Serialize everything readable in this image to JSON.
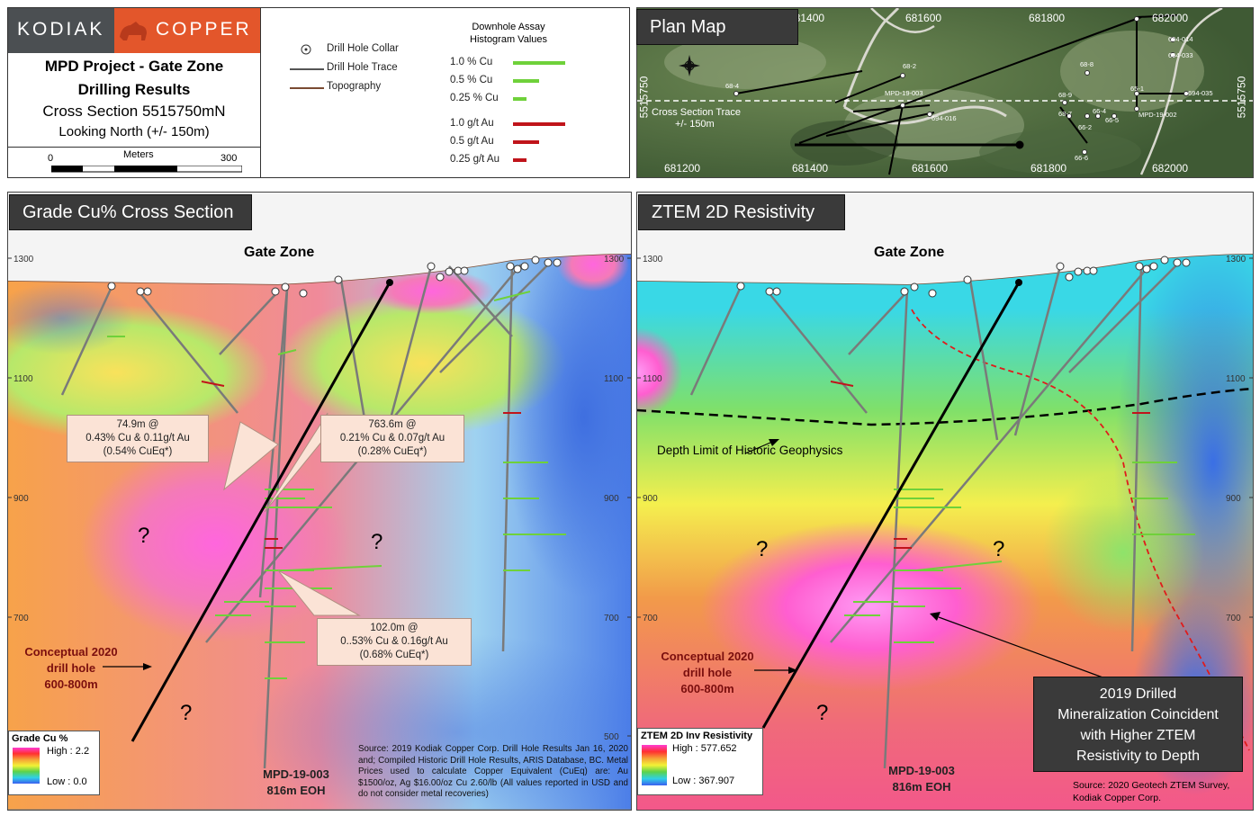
{
  "logo": {
    "left": "KODIAK",
    "right": "COPPER"
  },
  "title_block": {
    "line1": "MPD Project - Gate Zone",
    "line2": "Drilling Results",
    "line3": "Cross Section 5515750mN",
    "line4": "Looking North (+/- 150m)",
    "scale_label": "Meters",
    "scale_min": "0",
    "scale_max": "300"
  },
  "legend": {
    "collar": "Drill Hole Collar",
    "trace": "Drill Hole Trace",
    "topo": "Topography",
    "histogram_title_1": "Downhole Assay",
    "histogram_title_2": "Histogram Values",
    "cu": [
      {
        "label": "1.0 % Cu",
        "value": 1.0
      },
      {
        "label": "0.5 % Cu",
        "value": 0.5
      },
      {
        "label": "0.25 % Cu",
        "value": 0.25
      }
    ],
    "au": [
      {
        "label": "1.0 g/t Au",
        "value": 1.0
      },
      {
        "label": "0.5 g/t Au",
        "value": 0.5
      },
      {
        "label": "0.25 g/t Au",
        "value": 0.25
      }
    ],
    "colors": {
      "cu": "#6fd13a",
      "au": "#c0141b"
    }
  },
  "plan_map": {
    "tag": "Plan Map",
    "top_ticks": [
      "681400",
      "681600",
      "681800",
      "682000"
    ],
    "bottom_ticks": [
      "681200",
      "681400",
      "681600",
      "681800",
      "682000"
    ],
    "northing_left": "5515750",
    "northing_right": "5515750",
    "trace_label_1": "Cross Section Trace",
    "trace_label_2": "+/- 150m",
    "holes": [
      "68-2",
      "68-4",
      "MPD-19-003",
      "694-016",
      "68-8",
      "68-9",
      "68-7",
      "66-2",
      "66-4",
      "66-5",
      "66-6",
      "65-1",
      "694-035",
      "694-014",
      "694-033",
      "MPD-19-002"
    ]
  },
  "left_panel": {
    "tag": "Grade Cu% Cross Section",
    "zone": "Gate Zone",
    "elev_ticks": [
      "1300",
      "1100",
      "900",
      "700",
      "500"
    ],
    "callout1": {
      "l1": "74.9m @",
      "l2": "0.43% Cu & 0.11g/t Au",
      "l3": "(0.54% CuEq*)"
    },
    "callout2": {
      "l1": "763.6m @",
      "l2": "0.21% Cu & 0.07g/t Au",
      "l3": "(0.28% CuEq*)"
    },
    "callout3": {
      "l1": "102.0m @",
      "l2": "0..53% Cu & 0.16g/t Au",
      "l3": "(0.68% CuEq*)"
    },
    "question": "?",
    "conceptual": {
      "l1": "Conceptual 2020",
      "l2": "drill hole",
      "l3": "600-800m"
    },
    "hole": {
      "l1": "MPD-19-003",
      "l2": "816m EOH"
    },
    "color_legend": {
      "title": "Grade Cu %",
      "high": "High : 2.2",
      "low": "Low : 0.0"
    },
    "source": "Source:  2019 Kodiak Copper Corp. Drill Hole Results Jan 16, 2020 and; Compiled Historic Drill Hole Results, ARIS Database, BC. Metal Prices used to calculate Copper Equivalent (CuEq) are: Au $1500/oz, Ag $16.00/oz Cu 2.60/lb (All values reported in USD and do not consider metal recoveries)"
  },
  "right_panel": {
    "tag": "ZTEM 2D Resistivity",
    "zone": "Gate Zone",
    "elev_ticks": [
      "1300",
      "1100",
      "900",
      "700"
    ],
    "depth_limit": "Depth Limit of Historic Geophysics",
    "question": "?",
    "conceptual": {
      "l1": "Conceptual 2020",
      "l2": "drill hole",
      "l3": "600-800m"
    },
    "hole": {
      "l1": "MPD-19-003",
      "l2": "816m EOH"
    },
    "color_legend": {
      "title": "ZTEM 2D Inv Resistivity",
      "high": "High : 577.652",
      "low": "Low : 367.907"
    },
    "coincident": {
      "l1": "2019 Drilled",
      "l2": "Mineralization Coincident",
      "l3": "with Higher ZTEM",
      "l4": "Resistivity to Depth"
    },
    "source_l1": "Source:  2020 Geotech ZTEM Survey,",
    "source_l2": "Kodiak Copper Corp."
  }
}
